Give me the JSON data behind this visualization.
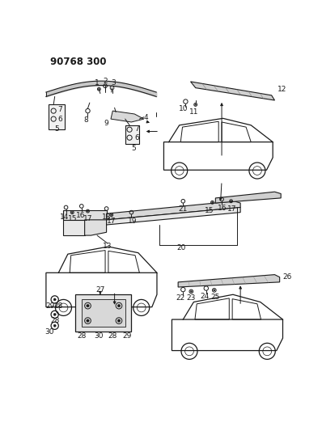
{
  "title": "90768 300",
  "bg_color": "#ffffff",
  "lc": "#1a1a1a",
  "lfs": 6.5,
  "title_fs": 8.5
}
